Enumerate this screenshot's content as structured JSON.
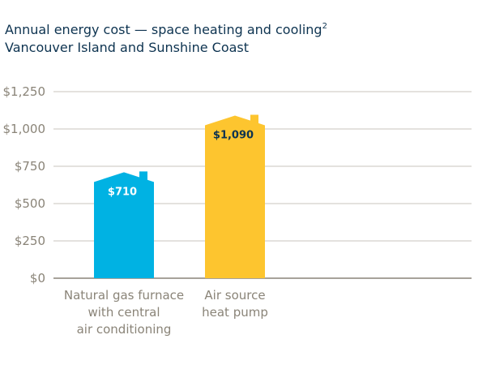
{
  "chart_data": {
    "type": "bar",
    "title": "Annual energy cost — space heating and cooling",
    "title_superscript": "2",
    "subtitle": "Vancouver Island and Sunshine Coast",
    "categories": [
      "Natural gas furnace with central air conditioning",
      "Air source heat pump"
    ],
    "category_label_lines": [
      [
        "Natural gas furnace",
        "with central",
        "air conditioning"
      ],
      [
        "Air source",
        "heat pump"
      ]
    ],
    "values": [
      710,
      1090
    ],
    "data_labels": [
      "$710",
      "$1,090"
    ],
    "bar_colors": [
      "#00b2e3",
      "#fdc52f"
    ],
    "data_label_colors": [
      "#ffffff",
      "#0d3350"
    ],
    "bar_shape": "house",
    "ylim": [
      0,
      1250
    ],
    "y_ticks": [
      0,
      250,
      500,
      750,
      1000,
      1250
    ],
    "y_tick_labels": [
      "$0",
      "$250",
      "$500",
      "$750",
      "$1,000",
      "$1,250"
    ],
    "xlabel": "",
    "ylabel": "",
    "grid": true,
    "legend": "none"
  }
}
